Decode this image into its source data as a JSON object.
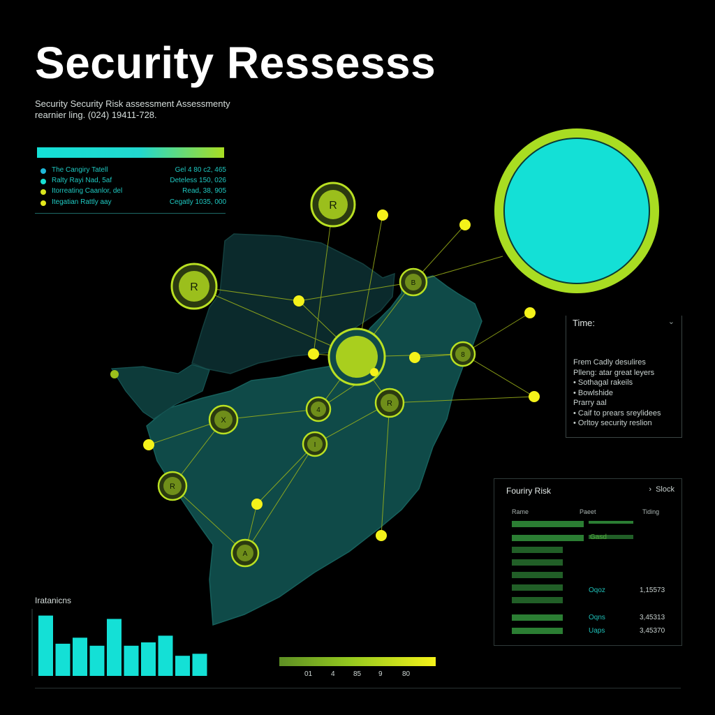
{
  "header": {
    "title": "Security Ressesss",
    "subtitle_line1": "Security Security Risk assessment Assessmenty",
    "subtitle_line2": "rearnier ling. (024) 19411-728."
  },
  "legend": {
    "items": [
      {
        "label": "The Cangiry Tatell",
        "value": "Gel 4 80 c2, 465",
        "color": "#1fb8d8"
      },
      {
        "label": "Ralty Rayi Nad, 5af",
        "value": "Deteless 150, 026",
        "color": "#18e0d2"
      },
      {
        "label": "Itorreating Caanlor, del",
        "value": "Read, 38, 905",
        "color": "#d8e41e"
      },
      {
        "label": "Itegatian Rattly aay",
        "value": "Cegatly 1035, 000",
        "color": "#e4e81c"
      }
    ]
  },
  "map": {
    "node_labels": [
      "R",
      "R",
      "R",
      "X",
      "4",
      "I",
      "R",
      "B",
      "8",
      "8",
      "A"
    ]
  },
  "time_panel": {
    "title": "Time:",
    "items": [
      "Frem Cadly desulires",
      "Plleng: atar great leyers",
      "• Sothagal rakeils",
      "• Bowlshide",
      "Prarry aal",
      "• Caif to prears sreylidees",
      "• Orltoy security reslion"
    ]
  },
  "risk_table": {
    "title": "Fouriry Risk",
    "stock_label": "Slock",
    "columns": [
      "Rame",
      "Paeet",
      "Tiding"
    ],
    "row_labels": [
      "Gasd",
      "Oqoz",
      "Oqns",
      "Uaps"
    ],
    "row_values": [
      "1,15573",
      "3,45313",
      "3,45370"
    ]
  },
  "interactions": {
    "label": "Iratanicns",
    "values": [
      90,
      48,
      57,
      45,
      85,
      45,
      50,
      60,
      30,
      33
    ]
  },
  "scale": {
    "ticks": [
      "01",
      "4",
      "85",
      "9",
      "80"
    ]
  },
  "colors": {
    "accent_cyan": "#14e0d6",
    "accent_lime": "#a9dd22",
    "map_fill": "#0f4a48",
    "node_yellow": "#f4f21a"
  }
}
